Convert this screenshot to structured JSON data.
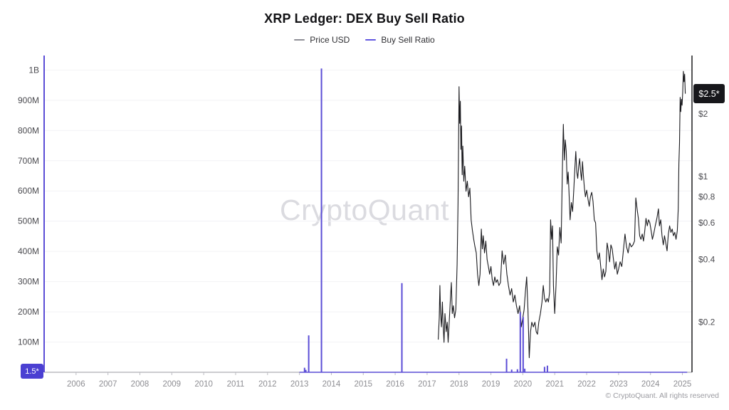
{
  "header": {
    "title": "XRP Ledger: DEX Buy Sell Ratio"
  },
  "legend": {
    "price": {
      "label": "Price USD",
      "color": "#8f8f96"
    },
    "ratio": {
      "label": "Buy Sell Ratio",
      "color": "#6156e0"
    }
  },
  "watermark": "CryptoQuant",
  "footer": {
    "copyright": "© CryptoQuant. All rights reserved"
  },
  "chart_data": {
    "type": "line",
    "title": "XRP Ledger: DEX Buy Sell Ratio",
    "legend_position": "top",
    "grid": "horizontal",
    "colors": {
      "grid_line": "#f2f2f5",
      "x_axis_line": "#9a9aa0",
      "x_tick": "#bcbcc2",
      "x_tick_label": "#8e8e93",
      "y_left_label": "#4b4b50",
      "y_right_label": "#4b4b50",
      "badge_ratio_bg": "#4b40d2",
      "badge_price_bg": "#17171b"
    },
    "x_axis": {
      "range": [
        2005.0,
        2025.3
      ],
      "ticks": [
        2006,
        2007,
        2008,
        2009,
        2010,
        2011,
        2012,
        2013,
        2014,
        2015,
        2016,
        2017,
        2018,
        2019,
        2020,
        2021,
        2022,
        2023,
        2024,
        2025
      ]
    },
    "y_left_axis": {
      "name": "Buy Sell Ratio volume",
      "scale": "linear",
      "unit": "millions",
      "range": [
        0,
        1048
      ],
      "axis_color": "#5b4dd6",
      "last_value_badge": "1.5*",
      "ticks": [
        {
          "value": 1000,
          "label": "1B"
        },
        {
          "value": 900,
          "label": "900M"
        },
        {
          "value": 800,
          "label": "800M"
        },
        {
          "value": 700,
          "label": "700M"
        },
        {
          "value": 600,
          "label": "600M"
        },
        {
          "value": 500,
          "label": "500M"
        },
        {
          "value": 400,
          "label": "400M"
        },
        {
          "value": 300,
          "label": "300M"
        },
        {
          "value": 200,
          "label": "200M"
        },
        {
          "value": 100,
          "label": "100M"
        }
      ]
    },
    "y_right_axis": {
      "name": "Price USD",
      "scale": "log",
      "range": [
        0.115,
        3.81
      ],
      "axis_color": "#1b1b1f",
      "last_value_badge": "$2.5*",
      "ticks": [
        {
          "value": 2,
          "label": "$2"
        },
        {
          "value": 1,
          "label": "$1"
        },
        {
          "value": 0.8,
          "label": "$0.8"
        },
        {
          "value": 0.6,
          "label": "$0.6"
        },
        {
          "value": 0.4,
          "label": "$0.4"
        },
        {
          "value": 0.2,
          "label": "$0.2"
        }
      ]
    },
    "series": [
      {
        "name": "Price USD",
        "type": "line",
        "axis": "right",
        "color": "#1b1b1f",
        "points": [
          [
            2017.35,
            0.165
          ],
          [
            2017.38,
            0.21
          ],
          [
            2017.4,
            0.3
          ],
          [
            2017.42,
            0.22
          ],
          [
            2017.45,
            0.19
          ],
          [
            2017.48,
            0.25
          ],
          [
            2017.5,
            0.2
          ],
          [
            2017.53,
            0.16
          ],
          [
            2017.56,
            0.22
          ],
          [
            2017.6,
            0.18
          ],
          [
            2017.63,
            0.2
          ],
          [
            2017.66,
            0.16
          ],
          [
            2017.7,
            0.21
          ],
          [
            2017.73,
            0.26
          ],
          [
            2017.76,
            0.31
          ],
          [
            2017.79,
            0.22
          ],
          [
            2017.82,
            0.24
          ],
          [
            2017.86,
            0.21
          ],
          [
            2017.9,
            0.23
          ],
          [
            2017.94,
            0.38
          ],
          [
            2017.97,
            0.75
          ],
          [
            2018.0,
            2.7
          ],
          [
            2018.02,
            1.8
          ],
          [
            2018.04,
            2.3
          ],
          [
            2018.06,
            1.35
          ],
          [
            2018.08,
            1.75
          ],
          [
            2018.1,
            1.02
          ],
          [
            2018.12,
            1.4
          ],
          [
            2018.15,
            0.95
          ],
          [
            2018.18,
            1.12
          ],
          [
            2018.22,
            0.85
          ],
          [
            2018.26,
            0.95
          ],
          [
            2018.3,
            0.8
          ],
          [
            2018.34,
            0.88
          ],
          [
            2018.38,
            0.62
          ],
          [
            2018.42,
            0.55
          ],
          [
            2018.46,
            0.5
          ],
          [
            2018.5,
            0.46
          ],
          [
            2018.54,
            0.43
          ],
          [
            2018.58,
            0.34
          ],
          [
            2018.62,
            0.3
          ],
          [
            2018.66,
            0.34
          ],
          [
            2018.7,
            0.56
          ],
          [
            2018.73,
            0.45
          ],
          [
            2018.76,
            0.52
          ],
          [
            2018.8,
            0.43
          ],
          [
            2018.84,
            0.49
          ],
          [
            2018.88,
            0.4
          ],
          [
            2018.92,
            0.37
          ],
          [
            2018.96,
            0.34
          ],
          [
            2019.0,
            0.37
          ],
          [
            2019.04,
            0.32
          ],
          [
            2019.08,
            0.3
          ],
          [
            2019.12,
            0.33
          ],
          [
            2019.16,
            0.31
          ],
          [
            2019.2,
            0.32
          ],
          [
            2019.25,
            0.3
          ],
          [
            2019.3,
            0.31
          ],
          [
            2019.35,
            0.44
          ],
          [
            2019.4,
            0.38
          ],
          [
            2019.45,
            0.42
          ],
          [
            2019.5,
            0.34
          ],
          [
            2019.55,
            0.3
          ],
          [
            2019.6,
            0.27
          ],
          [
            2019.65,
            0.29
          ],
          [
            2019.7,
            0.25
          ],
          [
            2019.75,
            0.27
          ],
          [
            2019.8,
            0.24
          ],
          [
            2019.85,
            0.22
          ],
          [
            2019.9,
            0.24
          ],
          [
            2019.95,
            0.19
          ],
          [
            2020.0,
            0.21
          ],
          [
            2020.04,
            0.23
          ],
          [
            2020.08,
            0.28
          ],
          [
            2020.12,
            0.33
          ],
          [
            2020.16,
            0.23
          ],
          [
            2020.2,
            0.135
          ],
          [
            2020.24,
            0.18
          ],
          [
            2020.28,
            0.2
          ],
          [
            2020.33,
            0.19
          ],
          [
            2020.38,
            0.2
          ],
          [
            2020.42,
            0.18
          ],
          [
            2020.46,
            0.175
          ],
          [
            2020.5,
            0.2
          ],
          [
            2020.55,
            0.22
          ],
          [
            2020.6,
            0.25
          ],
          [
            2020.64,
            0.3
          ],
          [
            2020.68,
            0.26
          ],
          [
            2020.72,
            0.25
          ],
          [
            2020.76,
            0.26
          ],
          [
            2020.8,
            0.25
          ],
          [
            2020.84,
            0.28
          ],
          [
            2020.87,
            0.62
          ],
          [
            2020.9,
            0.5
          ],
          [
            2020.93,
            0.58
          ],
          [
            2020.96,
            0.3
          ],
          [
            2021.0,
            0.22
          ],
          [
            2021.04,
            0.3
          ],
          [
            2021.08,
            0.46
          ],
          [
            2021.12,
            0.42
          ],
          [
            2021.16,
            0.57
          ],
          [
            2021.2,
            0.48
          ],
          [
            2021.24,
            1.1
          ],
          [
            2021.27,
            1.78
          ],
          [
            2021.3,
            1.2
          ],
          [
            2021.33,
            1.5
          ],
          [
            2021.36,
            1.32
          ],
          [
            2021.39,
            0.92
          ],
          [
            2021.42,
            1.05
          ],
          [
            2021.45,
            0.82
          ],
          [
            2021.48,
            0.62
          ],
          [
            2021.52,
            0.75
          ],
          [
            2021.56,
            0.68
          ],
          [
            2021.6,
            0.88
          ],
          [
            2021.63,
            1.1
          ],
          [
            2021.66,
            1.32
          ],
          [
            2021.69,
            1.05
          ],
          [
            2021.72,
            0.98
          ],
          [
            2021.75,
            1.12
          ],
          [
            2021.78,
            1.22
          ],
          [
            2021.81,
            1.05
          ],
          [
            2021.84,
            0.96
          ],
          [
            2021.87,
            1.18
          ],
          [
            2021.9,
            1.0
          ],
          [
            2021.93,
            0.88
          ],
          [
            2021.96,
            0.8
          ],
          [
            2022.0,
            0.86
          ],
          [
            2022.04,
            0.78
          ],
          [
            2022.08,
            0.72
          ],
          [
            2022.12,
            0.8
          ],
          [
            2022.16,
            0.84
          ],
          [
            2022.2,
            0.76
          ],
          [
            2022.24,
            0.62
          ],
          [
            2022.28,
            0.6
          ],
          [
            2022.32,
            0.44
          ],
          [
            2022.36,
            0.4
          ],
          [
            2022.4,
            0.43
          ],
          [
            2022.44,
            0.37
          ],
          [
            2022.48,
            0.32
          ],
          [
            2022.52,
            0.36
          ],
          [
            2022.56,
            0.33
          ],
          [
            2022.6,
            0.35
          ],
          [
            2022.64,
            0.48
          ],
          [
            2022.68,
            0.44
          ],
          [
            2022.72,
            0.39
          ],
          [
            2022.76,
            0.47
          ],
          [
            2022.8,
            0.45
          ],
          [
            2022.84,
            0.4
          ],
          [
            2022.88,
            0.36
          ],
          [
            2022.92,
            0.39
          ],
          [
            2022.96,
            0.34
          ],
          [
            2023.0,
            0.36
          ],
          [
            2023.05,
            0.39
          ],
          [
            2023.1,
            0.37
          ],
          [
            2023.15,
            0.44
          ],
          [
            2023.2,
            0.53
          ],
          [
            2023.25,
            0.46
          ],
          [
            2023.3,
            0.43
          ],
          [
            2023.35,
            0.48
          ],
          [
            2023.4,
            0.46
          ],
          [
            2023.45,
            0.47
          ],
          [
            2023.5,
            0.49
          ],
          [
            2023.54,
            0.79
          ],
          [
            2023.58,
            0.7
          ],
          [
            2023.62,
            0.63
          ],
          [
            2023.66,
            0.52
          ],
          [
            2023.7,
            0.5
          ],
          [
            2023.74,
            0.53
          ],
          [
            2023.78,
            0.49
          ],
          [
            2023.82,
            0.55
          ],
          [
            2023.86,
            0.63
          ],
          [
            2023.9,
            0.58
          ],
          [
            2023.94,
            0.62
          ],
          [
            2023.98,
            0.6
          ],
          [
            2024.02,
            0.55
          ],
          [
            2024.06,
            0.5
          ],
          [
            2024.1,
            0.53
          ],
          [
            2024.15,
            0.58
          ],
          [
            2024.2,
            0.63
          ],
          [
            2024.25,
            0.7
          ],
          [
            2024.28,
            0.58
          ],
          [
            2024.32,
            0.62
          ],
          [
            2024.36,
            0.52
          ],
          [
            2024.4,
            0.47
          ],
          [
            2024.44,
            0.52
          ],
          [
            2024.48,
            0.48
          ],
          [
            2024.52,
            0.44
          ],
          [
            2024.56,
            0.53
          ],
          [
            2024.6,
            0.58
          ],
          [
            2024.64,
            0.54
          ],
          [
            2024.68,
            0.56
          ],
          [
            2024.72,
            0.52
          ],
          [
            2024.76,
            0.54
          ],
          [
            2024.8,
            0.5
          ],
          [
            2024.84,
            0.55
          ],
          [
            2024.87,
            0.7
          ],
          [
            2024.89,
            1.15
          ],
          [
            2024.91,
            1.45
          ],
          [
            2024.93,
            2.4
          ],
          [
            2024.95,
            2.05
          ],
          [
            2024.97,
            2.35
          ],
          [
            2024.99,
            2.2
          ],
          [
            2025.01,
            2.55
          ],
          [
            2025.03,
            3.2
          ],
          [
            2025.05,
            2.85
          ],
          [
            2025.07,
            3.1
          ],
          [
            2025.09,
            2.5
          ]
        ]
      },
      {
        "name": "Buy Sell Ratio",
        "type": "spikes",
        "axis": "left",
        "color": "#5b4dd6",
        "baseline_value": 0,
        "baseline_span": [
          2013.0,
          2025.15
        ],
        "spikes": [
          [
            2013.16,
            15
          ],
          [
            2013.2,
            8
          ],
          [
            2013.29,
            122
          ],
          [
            2013.69,
            1005
          ],
          [
            2016.21,
            295
          ],
          [
            2019.49,
            45
          ],
          [
            2019.65,
            9
          ],
          [
            2019.83,
            10
          ],
          [
            2019.92,
            199
          ],
          [
            2020.01,
            183
          ],
          [
            2020.06,
            12
          ],
          [
            2020.68,
            18
          ],
          [
            2020.77,
            22
          ]
        ]
      }
    ]
  }
}
